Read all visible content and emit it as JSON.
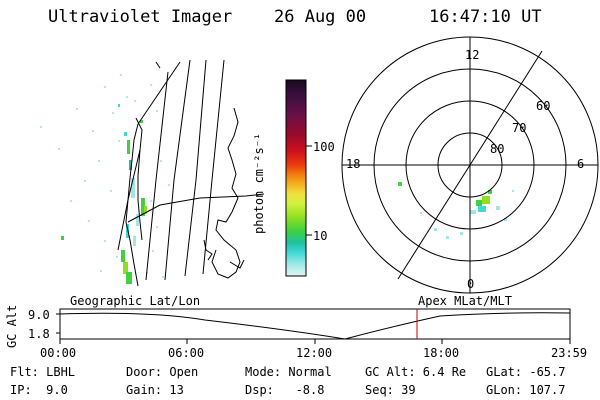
{
  "header": {
    "instrument": "Ultraviolet Imager",
    "date": "26 Aug 00",
    "time": "16:47:10 UT"
  },
  "colorbar": {
    "unit_label": "photon cm⁻²s⁻¹",
    "ticks": [
      "100",
      "10"
    ],
    "colors": [
      "#1a0a1e",
      "#3a1040",
      "#6a1048",
      "#9a0a2a",
      "#cc1020",
      "#e83a10",
      "#f27a10",
      "#f4b020",
      "#f2e040",
      "#d4f040",
      "#90e020",
      "#40d040",
      "#20c0a0",
      "#40d8d8",
      "#a0e8e8",
      "#e6f4f4"
    ]
  },
  "polar": {
    "mlt_labels": {
      "top": "12",
      "left": "18",
      "right": "6",
      "bottom": "0"
    },
    "lat_labels": [
      "60",
      "70",
      "80"
    ]
  },
  "timeline": {
    "axis_label": "GC Alt",
    "y_ticks": [
      "9.0",
      "1.8"
    ],
    "left_title": "Geographic Lat/Lon",
    "right_title": "Apex MLat/MLT",
    "time_ticks": [
      "00:00",
      "06:00",
      "12:00",
      "18:00",
      "23:59"
    ],
    "current_time_marker": "16:47:10",
    "marker_color": "#cc0000"
  },
  "info": {
    "flt": "Flt: LBHL",
    "ip": "IP:  9.0",
    "door": "Door: Open",
    "gain": "Gain: 13",
    "mode": "Mode: Normal",
    "dsp": "Dsp:   -8.8",
    "gc_alt": "GC Alt: 6.4 Re",
    "seq": "Seq: 39",
    "glat": "GLat: -65.7",
    "glon": "GLon: 107.7"
  }
}
